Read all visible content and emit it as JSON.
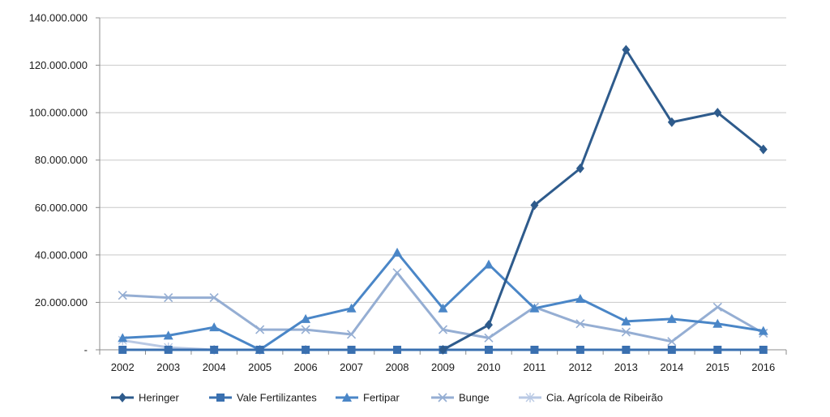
{
  "chart_data": {
    "type": "line",
    "title": "",
    "xlabel": "",
    "ylabel": "",
    "categories": [
      "2002",
      "2003",
      "2004",
      "2005",
      "2006",
      "2007",
      "2008",
      "2009",
      "2010",
      "2011",
      "2012",
      "2013",
      "2014",
      "2015",
      "2016"
    ],
    "ylim": [
      0,
      140000000
    ],
    "yticks": [
      0,
      20000000,
      40000000,
      60000000,
      80000000,
      100000000,
      120000000,
      140000000
    ],
    "ytick_labels": [
      "-",
      "20.000.000",
      "40.000.000",
      "60.000.000",
      "80.000.000",
      "100.000.000",
      "120.000.000",
      "140.000.000"
    ],
    "grid": "horizontal",
    "legend_position": "bottom",
    "series": [
      {
        "name": "Heringer",
        "color": "#2E5B8C",
        "marker": "diamond",
        "values": [
          null,
          null,
          null,
          null,
          null,
          null,
          null,
          0,
          10500000,
          61000000,
          76500000,
          126500000,
          96000000,
          100000000,
          84500000
        ]
      },
      {
        "name": "Vale Fertilizantes",
        "color": "#3A70B0",
        "marker": "square",
        "values": [
          0,
          0,
          0,
          0,
          0,
          0,
          0,
          0,
          0,
          0,
          0,
          0,
          0,
          0,
          0
        ]
      },
      {
        "name": "Fertipar",
        "color": "#4A86C7",
        "marker": "triangle",
        "values": [
          5000000,
          6000000,
          9500000,
          0,
          13000000,
          17500000,
          41000000,
          17500000,
          36000000,
          17500000,
          21500000,
          12000000,
          13000000,
          11000000,
          8000000
        ]
      },
      {
        "name": "Bunge",
        "color": "#95AED3",
        "marker": "x",
        "values": [
          23000000,
          22000000,
          22000000,
          8500000,
          8500000,
          6500000,
          32500000,
          8500000,
          5000000,
          18000000,
          11000000,
          7500000,
          3500000,
          18000000,
          7000000
        ]
      },
      {
        "name": "Cia. Agrícola de Ribeirão",
        "color": "#B9C9E4",
        "marker": "star",
        "values": [
          4000000,
          1000000,
          0,
          0,
          0,
          null,
          null,
          null,
          null,
          null,
          null,
          null,
          null,
          null,
          null
        ]
      }
    ]
  }
}
